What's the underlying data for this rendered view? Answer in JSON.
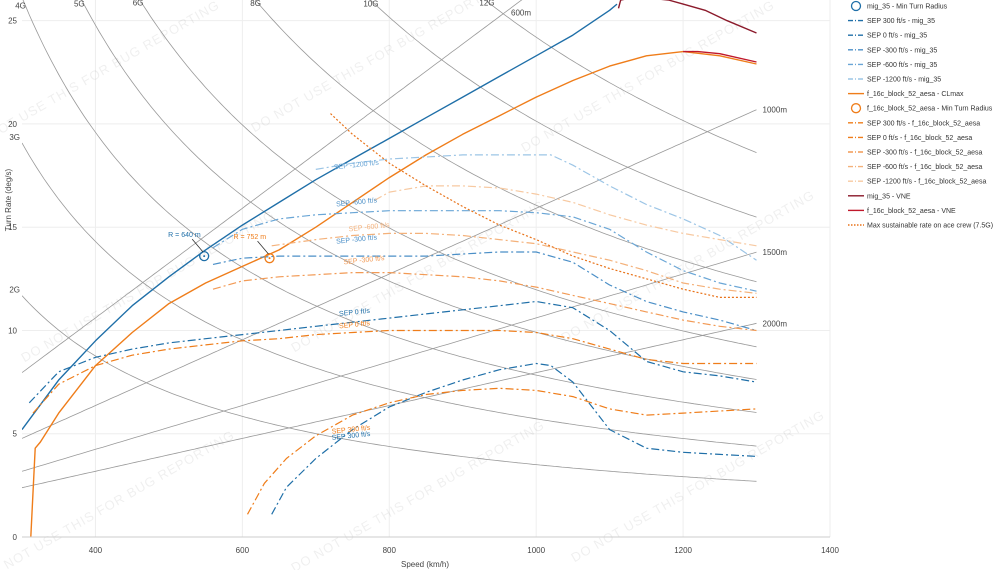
{
  "chart_data": {
    "type": "line",
    "title": "",
    "xlabel": "Speed (km/h)",
    "ylabel": "Turn Rate (deg/s)",
    "xlim": [
      300,
      1400
    ],
    "ylim": [
      0,
      26
    ],
    "x_ticks": [
      400,
      600,
      800,
      1000,
      1200,
      1400
    ],
    "y_ticks": [
      0,
      5,
      10,
      15,
      20,
      25
    ],
    "grid": true,
    "legend_position": "right",
    "watermark": "DO NOT USE THIS FOR BUG REPORTING",
    "colors": {
      "mig": "#1f6fa8",
      "mig_light": "#6aa6d6",
      "f16": "#ef7d1a",
      "f16_light": "#f4b17a",
      "vne_mig": "#8b1a2b",
      "vne_f16": "#c0182b",
      "ref": "#999999"
    },
    "g_lines": [
      {
        "label": "2G",
        "g": 2
      },
      {
        "label": "3G",
        "g": 3
      },
      {
        "label": "4G",
        "g": 4
      },
      {
        "label": "5G",
        "g": 5
      },
      {
        "label": "6G",
        "g": 6
      },
      {
        "label": "8G",
        "g": 8
      },
      {
        "label": "10G",
        "g": 10
      },
      {
        "label": "12G",
        "g": 12
      }
    ],
    "radius_lines": [
      {
        "label": "600m",
        "r": 600
      },
      {
        "label": "1000m",
        "r": 1000
      },
      {
        "label": "1500m",
        "r": 1500
      },
      {
        "label": "2000m",
        "r": 2000
      }
    ],
    "series": [
      {
        "name": "mig_35 - CLmax",
        "color": "#1f6fa8",
        "dash": "",
        "width": 1.4,
        "x": [
          300,
          350,
          400,
          450,
          500,
          550,
          600,
          650,
          700,
          750,
          800,
          850,
          900,
          950,
          1000,
          1050,
          1100,
          1110
        ],
        "y": [
          5.2,
          7.6,
          9.5,
          11.2,
          12.6,
          13.9,
          15.1,
          16.2,
          17.3,
          18.3,
          19.3,
          20.3,
          21.3,
          22.3,
          23.3,
          24.3,
          25.5,
          25.8
        ]
      },
      {
        "name": "f_16c_block_52_aesa - CLmax",
        "color": "#ef7d1a",
        "dash": "",
        "width": 1.4,
        "x": [
          312,
          318,
          325,
          350,
          400,
          450,
          500,
          550,
          600,
          650,
          700,
          750,
          800,
          850,
          900,
          950,
          1000,
          1050,
          1100,
          1150,
          1200,
          1250,
          1300
        ],
        "y": [
          0.0,
          4.3,
          4.6,
          6.0,
          8.3,
          9.9,
          11.3,
          12.3,
          13.1,
          13.9,
          15.0,
          16.2,
          17.4,
          18.5,
          19.5,
          20.4,
          21.3,
          22.1,
          22.8,
          23.3,
          23.5,
          23.3,
          22.9
        ]
      },
      {
        "name": "SEP 300 ft/s - mig_35",
        "color": "#1f6fa8",
        "dash": "8,3,2,3",
        "width": 1.2,
        "x": [
          640,
          660,
          700,
          750,
          800,
          850,
          900,
          950,
          1000,
          1020,
          1050,
          1100,
          1150,
          1200,
          1250,
          1300
        ],
        "y": [
          1.1,
          2.4,
          3.8,
          5.2,
          6.3,
          7.0,
          7.6,
          8.1,
          8.4,
          8.3,
          7.5,
          5.2,
          4.3,
          4.1,
          4.0,
          3.9
        ]
      },
      {
        "name": "SEP 0 ft/s - mig_35",
        "color": "#1f6fa8",
        "dash": "8,3,2,3",
        "width": 1.2,
        "x": [
          310,
          350,
          400,
          450,
          500,
          550,
          600,
          650,
          700,
          750,
          800,
          850,
          900,
          950,
          1000,
          1050,
          1100,
          1150,
          1200,
          1250,
          1300
        ],
        "y": [
          6.5,
          8.0,
          8.7,
          9.1,
          9.4,
          9.6,
          9.8,
          10.0,
          10.2,
          10.4,
          10.6,
          10.8,
          11.0,
          11.2,
          11.4,
          11.1,
          10.0,
          8.5,
          8.0,
          7.8,
          7.5
        ]
      },
      {
        "name": "SEP -300 ft/s - mig_35",
        "color": "#4b8fc7",
        "dash": "8,3,2,3",
        "width": 1.2,
        "x": [
          560,
          600,
          650,
          700,
          750,
          800,
          850,
          900,
          950,
          1000,
          1050,
          1100,
          1150,
          1200,
          1250,
          1300
        ],
        "y": [
          13.2,
          13.5,
          13.6,
          13.6,
          13.6,
          13.6,
          13.6,
          13.7,
          13.8,
          13.8,
          13.3,
          12.2,
          11.4,
          10.9,
          10.5,
          10.0
        ]
      },
      {
        "name": "SEP -600 ft/s - mig_35",
        "color": "#6aa6d6",
        "dash": "8,3,2,3",
        "width": 1.2,
        "x": [
          560,
          600,
          650,
          700,
          750,
          800,
          850,
          900,
          950,
          1000,
          1050,
          1100,
          1150,
          1200,
          1250,
          1300
        ],
        "y": [
          14.0,
          14.9,
          15.4,
          15.6,
          15.7,
          15.8,
          15.8,
          15.8,
          15.8,
          15.7,
          15.5,
          14.9,
          13.8,
          12.9,
          12.3,
          11.9
        ]
      },
      {
        "name": "SEP -1200 ft/s - mig_35",
        "color": "#9cc5e6",
        "dash": "8,3,2,3",
        "width": 1.2,
        "x": [
          700,
          750,
          800,
          850,
          900,
          950,
          1000,
          1020,
          1050,
          1100,
          1150,
          1200,
          1250,
          1300
        ],
        "y": [
          17.8,
          18.1,
          18.3,
          18.4,
          18.5,
          18.5,
          18.5,
          18.5,
          18.0,
          17.0,
          16.1,
          15.4,
          14.6,
          13.4
        ]
      },
      {
        "name": "SEP 300 ft/s - f_16c_block_52_aesa",
        "color": "#ef7d1a",
        "dash": "8,3,2,3",
        "width": 1.2,
        "x": [
          607,
          630,
          660,
          700,
          750,
          800,
          850,
          900,
          950,
          1000,
          1050,
          1100,
          1150,
          1200,
          1250,
          1300
        ],
        "y": [
          1.1,
          2.6,
          3.8,
          4.9,
          5.9,
          6.5,
          6.9,
          7.1,
          7.2,
          7.1,
          6.8,
          6.2,
          5.9,
          6.0,
          6.1,
          6.2
        ]
      },
      {
        "name": "SEP 0 ft/s - f_16c_block_52_aesa",
        "color": "#ef7d1a",
        "dash": "8,3,2,3",
        "width": 1.2,
        "x": [
          315,
          350,
          400,
          450,
          500,
          550,
          600,
          650,
          700,
          750,
          800,
          850,
          900,
          950,
          1000,
          1050,
          1100,
          1150,
          1200,
          1250,
          1300
        ],
        "y": [
          6.0,
          7.4,
          8.3,
          8.8,
          9.1,
          9.3,
          9.5,
          9.6,
          9.8,
          9.9,
          10.0,
          10.0,
          10.0,
          10.0,
          9.9,
          9.6,
          9.1,
          8.6,
          8.4,
          8.4,
          8.4
        ]
      },
      {
        "name": "SEP -300 ft/s - f_16c_block_52_aesa",
        "color": "#f29a55",
        "dash": "8,3,2,3",
        "width": 1.2,
        "x": [
          560,
          600,
          650,
          700,
          750,
          800,
          850,
          900,
          950,
          1000,
          1050,
          1100,
          1150,
          1200,
          1250,
          1300
        ],
        "y": [
          12.0,
          12.4,
          12.6,
          12.7,
          12.8,
          12.8,
          12.7,
          12.6,
          12.4,
          12.1,
          11.7,
          11.3,
          10.9,
          10.5,
          10.2,
          10.0
        ]
      },
      {
        "name": "SEP -600 ft/s - f_16c_block_52_aesa",
        "color": "#f4b17a",
        "dash": "8,3,2,3",
        "width": 1.2,
        "x": [
          640,
          700,
          750,
          800,
          850,
          900,
          950,
          1000,
          1050,
          1100,
          1150,
          1200,
          1250,
          1300
        ],
        "y": [
          14.1,
          14.4,
          14.6,
          14.7,
          14.7,
          14.6,
          14.4,
          14.2,
          13.8,
          13.4,
          12.9,
          12.3,
          12.0,
          11.8
        ]
      },
      {
        "name": "SEP -1200 ft/s - f_16c_block_52_aesa",
        "color": "#f7c9a1",
        "dash": "8,3,2,3",
        "width": 1.2,
        "x": [
          780,
          800,
          850,
          900,
          950,
          1000,
          1050,
          1100,
          1150,
          1200,
          1250,
          1300
        ],
        "y": [
          16.3,
          16.7,
          17.0,
          17.0,
          16.9,
          16.6,
          16.2,
          15.6,
          15.1,
          14.7,
          14.4,
          14.1
        ]
      },
      {
        "name": "mig_35 - VNE",
        "color": "#8b1a2b",
        "dash": "",
        "width": 1.4,
        "x": [
          1112,
          1115,
          1130,
          1150,
          1180,
          1200,
          1230,
          1260,
          1300
        ],
        "y": [
          25.6,
          26.0,
          26.1,
          26.1,
          26.0,
          25.8,
          25.5,
          25.0,
          24.4
        ]
      },
      {
        "name": "f_16c_block_52_aesa - VNE",
        "color": "#c0182b",
        "dash": "",
        "width": 1.4,
        "x": [
          1200,
          1220,
          1250,
          1300
        ],
        "y": [
          23.5,
          23.5,
          23.4,
          23.0
        ]
      },
      {
        "name": "Max sustainable rate on ace crew (7.5G)",
        "color": "#e8731a",
        "dash": "2,2",
        "width": 1.2,
        "x": [
          720,
          750,
          800,
          850,
          900,
          950,
          1000,
          1050,
          1100,
          1150,
          1200,
          1250,
          1300
        ],
        "y": [
          20.5,
          19.5,
          18.1,
          17.0,
          16.0,
          15.1,
          14.4,
          13.6,
          13.0,
          12.5,
          12.0,
          11.6,
          11.6
        ]
      }
    ],
    "points": [
      {
        "name": "mig_35 - Min Turn Radius",
        "label": "R = 640 m",
        "x": 548,
        "y": 13.6,
        "color": "#1f6fa8"
      },
      {
        "name": "f_16c_block_52_aesa - Min Turn Radius",
        "label": "R = 752 m",
        "x": 637,
        "y": 13.5,
        "color": "#ef7d1a"
      }
    ],
    "annotations": [
      {
        "text": "SEP -1200 ft/s",
        "x": 725,
        "y": 17.8,
        "color": "#6aa6d6"
      },
      {
        "text": "SEP -600 ft/s",
        "x": 728,
        "y": 16.0,
        "color": "#4b8fc7"
      },
      {
        "text": "SEP -300 ft/s",
        "x": 728,
        "y": 14.2,
        "color": "#4b8fc7"
      },
      {
        "text": "SEP -600 ft/s",
        "x": 745,
        "y": 14.8,
        "color": "#f4b17a"
      },
      {
        "text": "SEP -300 ft/s",
        "x": 738,
        "y": 13.2,
        "color": "#f29a55"
      },
      {
        "text": "SEP 0 ft/s",
        "x": 732,
        "y": 10.7,
        "color": "#1f6fa8"
      },
      {
        "text": "SEP 0 ft/s",
        "x": 732,
        "y": 10.1,
        "color": "#ef7d1a"
      },
      {
        "text": "SEP 300 ft/s",
        "x": 722,
        "y": 5.0,
        "color": "#ef7d1a"
      },
      {
        "text": "SEP 300 ft/s",
        "x": 722,
        "y": 4.7,
        "color": "#1f6fa8"
      }
    ],
    "legend": [
      {
        "label": "mig_35 - Min Turn Radius",
        "type": "circle",
        "color": "#1f6fa8"
      },
      {
        "label": "SEP 300 ft/s - mig_35",
        "type": "dashdot",
        "color": "#1f6fa8"
      },
      {
        "label": "SEP 0 ft/s - mig_35",
        "type": "dashdot",
        "color": "#1f6fa8"
      },
      {
        "label": "SEP -300 ft/s - mig_35",
        "type": "dashdot",
        "color": "#4b8fc7"
      },
      {
        "label": "SEP -600 ft/s - mig_35",
        "type": "dashdot",
        "color": "#6aa6d6"
      },
      {
        "label": "SEP -1200 ft/s - mig_35",
        "type": "dashdot",
        "color": "#9cc5e6"
      },
      {
        "label": "f_16c_block_52_aesa - CLmax",
        "type": "solid",
        "color": "#ef7d1a"
      },
      {
        "label": "f_16c_block_52_aesa - Min Turn Radius",
        "type": "circle",
        "color": "#ef7d1a"
      },
      {
        "label": "SEP 300 ft/s - f_16c_block_52_aesa",
        "type": "dashdot",
        "color": "#ef7d1a"
      },
      {
        "label": "SEP 0 ft/s - f_16c_block_52_aesa",
        "type": "dashdot",
        "color": "#ef7d1a"
      },
      {
        "label": "SEP -300 ft/s - f_16c_block_52_aesa",
        "type": "dashdot",
        "color": "#f29a55"
      },
      {
        "label": "SEP -600 ft/s - f_16c_block_52_aesa",
        "type": "dashdot",
        "color": "#f4b17a"
      },
      {
        "label": "SEP -1200 ft/s - f_16c_block_52_aesa",
        "type": "dashdot",
        "color": "#f7c9a1"
      },
      {
        "label": "mig_35 - VNE",
        "type": "solid",
        "color": "#8b1a2b"
      },
      {
        "label": "f_16c_block_52_aesa - VNE",
        "type": "solid",
        "color": "#c0182b"
      },
      {
        "label": "Max sustainable rate on ace crew (7.5G)",
        "type": "dotted",
        "color": "#e8731a"
      }
    ]
  }
}
